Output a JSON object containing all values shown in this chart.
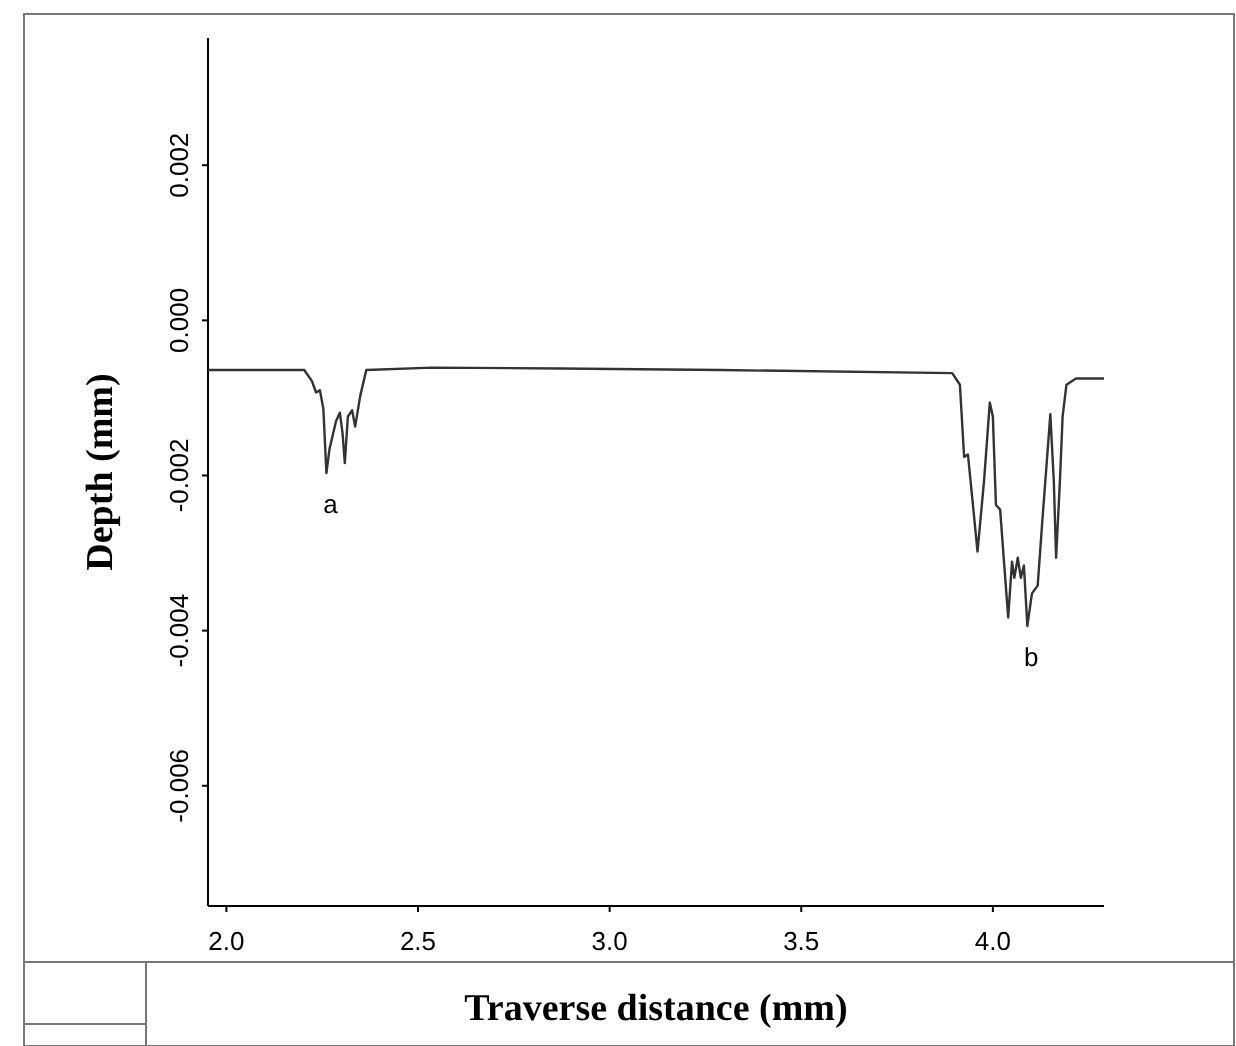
{
  "chart_data": {
    "type": "line",
    "xlabel": "Traverse distance (mm)",
    "ylabel": "Depth (mm)",
    "xlim": [
      1.952,
      4.29
    ],
    "ylim": [
      -0.00755,
      0.00364
    ],
    "xticks": [
      {
        "value": 2,
        "label": "2.0"
      },
      {
        "value": 2.5,
        "label": "2.5"
      },
      {
        "value": 3,
        "label": "3.0"
      },
      {
        "value": 3.5,
        "label": "3.5"
      },
      {
        "value": 4,
        "label": "4.0"
      }
    ],
    "yticks": [
      {
        "value": 0.002,
        "label": "0.002"
      },
      {
        "value": 0,
        "label": "0.000"
      },
      {
        "value": -0.002,
        "label": "-0.002"
      },
      {
        "value": -0.004,
        "label": "-0.004"
      },
      {
        "value": -0.006,
        "label": "-0.006"
      }
    ],
    "grid": false,
    "marker": "none",
    "line_style": "solid",
    "annotations": [
      {
        "text": "a",
        "x": 2.261,
        "y": -0.00197
      },
      {
        "text": "b",
        "x": 4.09,
        "y": -0.00394
      }
    ],
    "series": [
      {
        "color": "#333333",
        "x": [
          1.952,
          2.203,
          2.223,
          2.234,
          2.244,
          2.253,
          2.261,
          2.269,
          2.286,
          2.296,
          2.303,
          2.309,
          2.317,
          2.328,
          2.336,
          2.349,
          2.365,
          2.537,
          2.871,
          3.288,
          3.894,
          3.914,
          3.925,
          3.935,
          3.946,
          3.96,
          3.977,
          3.992,
          4.0,
          4.008,
          4.019,
          4.029,
          4.04,
          4.05,
          4.056,
          4.065,
          4.073,
          4.081,
          4.09,
          4.102,
          4.117,
          4.129,
          4.14,
          4.15,
          4.159,
          4.165,
          4.175,
          4.182,
          4.192,
          4.217,
          4.29
        ],
        "values": [
          -0.00064,
          -0.00064,
          -0.00078,
          -0.00093,
          -0.0009,
          -0.00114,
          -0.00197,
          -0.00166,
          -0.0013,
          -0.00119,
          -0.00145,
          -0.00184,
          -0.00124,
          -0.00116,
          -0.00137,
          -0.00098,
          -0.00064,
          -0.00061,
          -0.00062,
          -0.00064,
          -0.00068,
          -0.00083,
          -0.00176,
          -0.00173,
          -0.00228,
          -0.00298,
          -0.00207,
          -0.00106,
          -0.00124,
          -0.00238,
          -0.00244,
          -0.00311,
          -0.00383,
          -0.00311,
          -0.00332,
          -0.00306,
          -0.00332,
          -0.00316,
          -0.00394,
          -0.00352,
          -0.00342,
          -0.00259,
          -0.00187,
          -0.00121,
          -0.00207,
          -0.00306,
          -0.00207,
          -0.00124,
          -0.00083,
          -0.00075,
          -0.00075
        ]
      }
    ]
  }
}
